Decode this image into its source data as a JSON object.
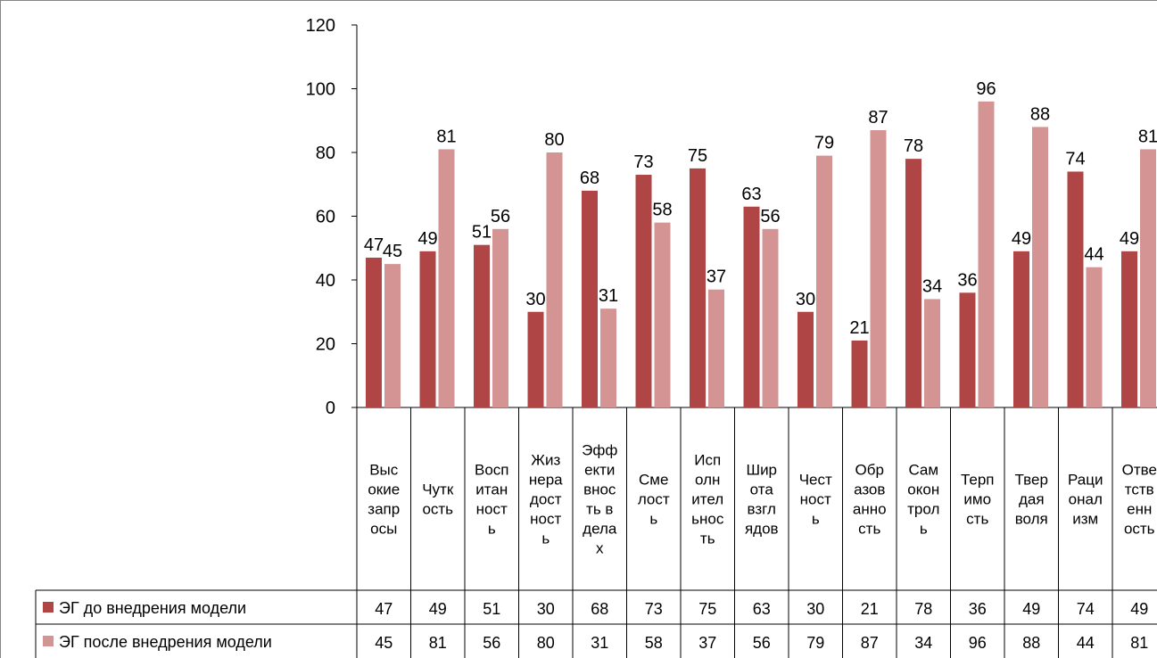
{
  "chart_data": {
    "type": "bar",
    "ylim": [
      0,
      120
    ],
    "yticks": [
      "0",
      "20",
      "40",
      "60",
      "80",
      "100",
      "120"
    ],
    "grid": false,
    "legend": "data-table",
    "categories": [
      "Высокие запросы",
      "Чуткость",
      "Воспитанность",
      "Жизнерадостность",
      "Эффективность в делах",
      "Смелость",
      "Исполнительность",
      "Широта взглядов",
      "Честность",
      "Образованность",
      "Самоконтроль",
      "Терпимость",
      "Твердая воля",
      "Рационализм",
      "Ответственность"
    ],
    "category_lines": [
      [
        "Выс",
        "окие",
        "запр",
        "осы"
      ],
      [
        "Чутк",
        "ость"
      ],
      [
        "Восп",
        "итан",
        "ност",
        "ь"
      ],
      [
        "Жиз",
        "нера",
        "дост",
        "ност",
        "ь"
      ],
      [
        "Эфф",
        "екти",
        "внос",
        "ть в",
        "дела",
        "х"
      ],
      [
        "Сме",
        "лост",
        "ь"
      ],
      [
        "Исп",
        "олн",
        "ител",
        "ьнос",
        "ть"
      ],
      [
        "Шир",
        "ота",
        "взгл",
        "ядов"
      ],
      [
        "Чест",
        "ност",
        "ь"
      ],
      [
        "Обр",
        "азов",
        "анно",
        "сть"
      ],
      [
        "Сам",
        "окон",
        "трол",
        "ь"
      ],
      [
        "Терп",
        "имо",
        "сть"
      ],
      [
        "Твер",
        "дая",
        "воля"
      ],
      [
        "Раци",
        "онал",
        "изм"
      ],
      [
        "Отве",
        "тств",
        "енн",
        "ость"
      ]
    ],
    "series": [
      {
        "name": "ЭГ до внедрения модели",
        "color": "#AF4645",
        "values": [
          47,
          49,
          51,
          30,
          68,
          73,
          75,
          63,
          30,
          21,
          78,
          36,
          49,
          74,
          49
        ]
      },
      {
        "name": "ЭГ после внедрения модели",
        "color": "#D49493",
        "values": [
          45,
          81,
          56,
          80,
          31,
          58,
          37,
          56,
          79,
          87,
          34,
          96,
          88,
          44,
          81
        ]
      }
    ]
  }
}
